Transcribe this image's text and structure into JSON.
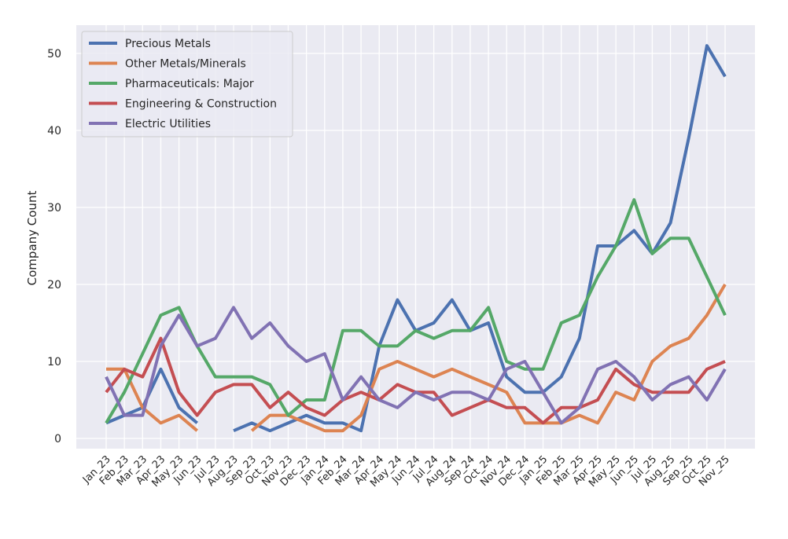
{
  "chart_data": {
    "type": "line",
    "title": "",
    "xlabel": "",
    "ylabel": "Company Count",
    "ylim": [
      -1.2,
      53.5
    ],
    "yticks": [
      0,
      10,
      20,
      30,
      40,
      50
    ],
    "grid": true,
    "legend_position": "top-left",
    "categories": [
      "Jan_23",
      "Feb_23",
      "Mar_23",
      "Apr_23",
      "May_23",
      "Jun_23",
      "Jul_23",
      "Aug_23",
      "Sep_23",
      "Oct_23",
      "Nov_23",
      "Dec_23",
      "Jan_24",
      "Feb_24",
      "Mar_24",
      "Apr_24",
      "May_24",
      "Jun_24",
      "Jul_24",
      "Aug_24",
      "Sep_24",
      "Oct_24",
      "Nov_24",
      "Dec_24",
      "Jan_25",
      "Feb_25",
      "Mar_25",
      "Apr_25",
      "May_25",
      "Jun_25",
      "Jul_25",
      "Aug_25",
      "Sep_25",
      "Oct_25",
      "Nov_25"
    ],
    "series": [
      {
        "name": "Precious Metals",
        "color": "#4c72b0",
        "values": [
          2,
          3,
          4,
          9,
          4,
          2,
          null,
          1,
          2,
          1,
          2,
          3,
          2,
          2,
          1,
          12,
          18,
          14,
          15,
          18,
          14,
          15,
          8,
          6,
          6,
          8,
          13,
          25,
          25,
          27,
          24,
          28,
          39,
          51,
          47
        ]
      },
      {
        "name": "Other Metals/Minerals",
        "color": "#dd8452",
        "values": [
          9,
          9,
          4,
          2,
          3,
          1,
          null,
          null,
          1,
          3,
          3,
          2,
          1,
          1,
          3,
          9,
          10,
          9,
          8,
          9,
          8,
          7,
          6,
          2,
          2,
          2,
          3,
          2,
          6,
          5,
          10,
          12,
          13,
          16,
          20
        ]
      },
      {
        "name": "Pharmaceuticals: Major",
        "color": "#55a868",
        "values": [
          2,
          6,
          11,
          16,
          17,
          12,
          8,
          8,
          8,
          7,
          3,
          5,
          5,
          14,
          14,
          12,
          12,
          14,
          13,
          14,
          14,
          17,
          10,
          9,
          9,
          15,
          16,
          21,
          25,
          31,
          24,
          26,
          26,
          21,
          16
        ]
      },
      {
        "name": "Engineering & Construction",
        "color": "#c44e52",
        "values": [
          6,
          9,
          8,
          13,
          6,
          3,
          6,
          7,
          7,
          4,
          6,
          4,
          3,
          5,
          6,
          5,
          7,
          6,
          6,
          3,
          4,
          5,
          4,
          4,
          2,
          4,
          4,
          5,
          9,
          7,
          6,
          6,
          6,
          9,
          10
        ]
      },
      {
        "name": "Electric Utilities",
        "color": "#8172b3",
        "values": [
          8,
          3,
          3,
          12,
          16,
          12,
          13,
          17,
          13,
          15,
          12,
          10,
          11,
          5,
          8,
          5,
          4,
          6,
          5,
          6,
          6,
          5,
          9,
          10,
          6,
          2,
          4,
          9,
          10,
          8,
          5,
          7,
          8,
          5,
          9
        ]
      }
    ]
  }
}
